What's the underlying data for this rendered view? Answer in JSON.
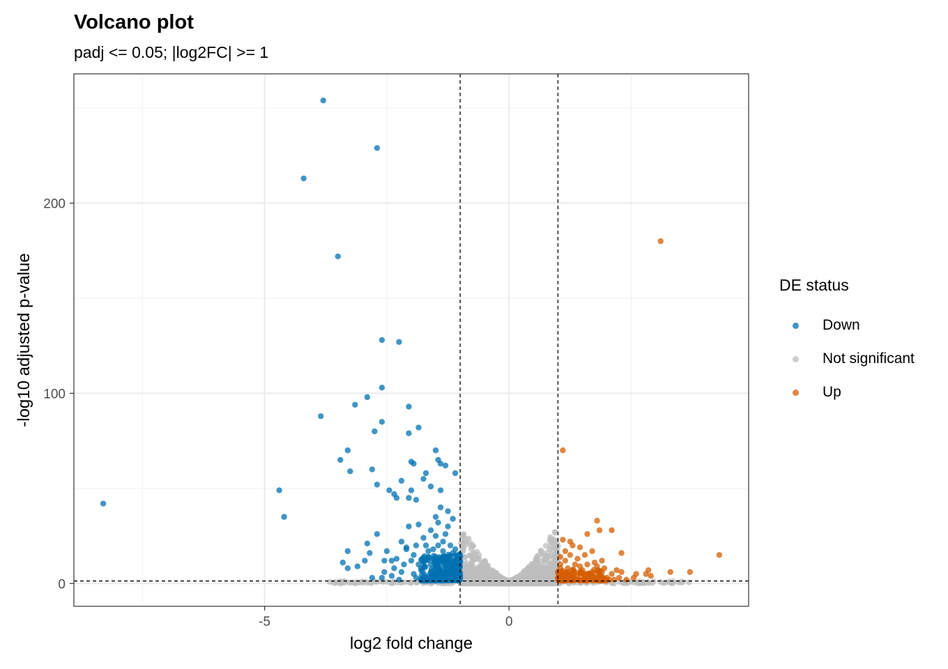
{
  "chart_data": {
    "type": "scatter",
    "title": "Volcano plot",
    "subtitle": "padj <= 0.05; |log2FC| >= 1",
    "xlabel": "log2 fold change",
    "ylabel": "-log10 adjusted p-value",
    "xlim": [
      -8.9,
      4.9
    ],
    "ylim": [
      -12,
      268
    ],
    "xticks": [
      -5,
      0
    ],
    "yticks": [
      0,
      100,
      200
    ],
    "grid": true,
    "legend": {
      "title": "DE status",
      "placement": "right",
      "entries": [
        {
          "label": "Down",
          "color": "#0072B2"
        },
        {
          "label": "Not significant",
          "color": "#BEBEBE"
        },
        {
          "label": "Up",
          "color": "#D55E00"
        }
      ]
    },
    "thresholds": {
      "x": [
        -1,
        1
      ],
      "y": 1.3
    },
    "series": [
      {
        "name": "Down",
        "color": "#0072B2",
        "points": [
          [
            -8.3,
            42
          ],
          [
            -4.7,
            49
          ],
          [
            -4.6,
            35
          ],
          [
            -3.8,
            254
          ],
          [
            -4.2,
            213
          ],
          [
            -3.5,
            172
          ],
          [
            -2.7,
            229
          ],
          [
            -3.85,
            88
          ],
          [
            -3.45,
            65
          ],
          [
            -3.3,
            70
          ],
          [
            -3.25,
            59
          ],
          [
            -3.15,
            94
          ],
          [
            -2.9,
            98
          ],
          [
            -2.8,
            60
          ],
          [
            -2.75,
            80
          ],
          [
            -2.7,
            52
          ],
          [
            -2.6,
            128
          ],
          [
            -2.6,
            103
          ],
          [
            -2.6,
            85
          ],
          [
            -2.25,
            127
          ],
          [
            -2.05,
            93
          ],
          [
            -2.05,
            79
          ],
          [
            -1.85,
            82
          ],
          [
            -1.95,
            63
          ],
          [
            -2.0,
            64
          ],
          [
            -1.7,
            58
          ],
          [
            -1.5,
            70
          ],
          [
            -1.4,
            63
          ],
          [
            -1.3,
            62
          ],
          [
            -1.45,
            65
          ],
          [
            -1.1,
            58
          ],
          [
            -2.2,
            54
          ],
          [
            -2.35,
            47
          ],
          [
            -2.45,
            49
          ],
          [
            -2.3,
            45
          ],
          [
            -2.0,
            49
          ],
          [
            -2.05,
            45
          ],
          [
            -1.9,
            44
          ],
          [
            -1.6,
            51
          ],
          [
            -1.75,
            55
          ],
          [
            -1.4,
            49
          ],
          [
            -1.25,
            38
          ],
          [
            -1.5,
            35
          ],
          [
            -1.45,
            32
          ],
          [
            -1.25,
            30
          ],
          [
            -1.15,
            34
          ],
          [
            -1.4,
            40
          ],
          [
            -1.6,
            28
          ],
          [
            -1.85,
            31
          ],
          [
            -2.05,
            30
          ],
          [
            -1.75,
            24
          ],
          [
            -2.2,
            22
          ],
          [
            -2.5,
            17
          ],
          [
            -2.7,
            26
          ],
          [
            -2.9,
            21
          ],
          [
            -3.3,
            17
          ],
          [
            -3.4,
            11
          ],
          [
            -3.3,
            8
          ],
          [
            -3.1,
            9
          ],
          [
            -2.95,
            12
          ],
          [
            -2.85,
            16
          ],
          [
            -2.55,
            12
          ],
          [
            -2.3,
            13
          ],
          [
            -2.1,
            19
          ],
          [
            -1.9,
            20
          ],
          [
            -1.65,
            17
          ],
          [
            -1.55,
            13
          ],
          [
            -1.3,
            14
          ],
          [
            -1.15,
            12
          ],
          [
            -1.1,
            8
          ],
          [
            -1.25,
            10
          ],
          [
            -1.45,
            9
          ],
          [
            -1.6,
            6
          ],
          [
            -1.8,
            8
          ],
          [
            -2.0,
            12
          ],
          [
            -2.2,
            6
          ],
          [
            -2.4,
            4
          ],
          [
            -2.6,
            3
          ],
          [
            -2.25,
            2
          ],
          [
            -1.95,
            5
          ],
          [
            -1.7,
            3
          ],
          [
            -1.55,
            4
          ],
          [
            -1.35,
            4
          ],
          [
            -1.2,
            6
          ],
          [
            -1.05,
            5
          ],
          [
            -1.1,
            18
          ],
          [
            -1.35,
            22
          ],
          [
            -1.55,
            18
          ],
          [
            -1.65,
            14
          ],
          [
            -1.75,
            12
          ],
          [
            -1.85,
            10
          ],
          [
            -1.5,
            25
          ],
          [
            -1.3,
            26
          ],
          [
            -1.2,
            20
          ],
          [
            -2.55,
            6
          ],
          [
            -2.35,
            8
          ],
          [
            -2.15,
            10
          ],
          [
            -1.4,
            6
          ],
          [
            -1.15,
            16
          ],
          [
            -1.25,
            2
          ],
          [
            -1.05,
            2
          ],
          [
            -2.8,
            3
          ],
          [
            -1.9,
            3
          ],
          [
            -1.6,
            10
          ],
          [
            -1.35,
            17
          ],
          [
            -1.1,
            10
          ],
          [
            -1.5,
            14
          ],
          [
            -1.95,
            15
          ],
          [
            -2.1,
            18
          ],
          [
            -2.4,
            12
          ],
          [
            -1.7,
            20
          ],
          [
            -1.45,
            20
          ],
          [
            -1.2,
            3
          ],
          [
            -1.6,
            2
          ]
        ]
      },
      {
        "name": "Up",
        "color": "#D55E00",
        "points": [
          [
            3.1,
            180
          ],
          [
            1.1,
            70
          ],
          [
            4.3,
            15
          ],
          [
            1.8,
            33
          ],
          [
            1.85,
            28
          ],
          [
            1.6,
            26
          ],
          [
            2.1,
            28
          ],
          [
            1.1,
            23
          ],
          [
            1.3,
            20
          ],
          [
            1.45,
            19
          ],
          [
            1.25,
            15
          ],
          [
            1.4,
            13
          ],
          [
            1.55,
            15
          ],
          [
            1.7,
            17
          ],
          [
            2.3,
            16
          ],
          [
            1.15,
            12
          ],
          [
            1.35,
            10
          ],
          [
            1.6,
            10
          ],
          [
            1.75,
            11
          ],
          [
            1.8,
            9
          ],
          [
            1.95,
            8
          ],
          [
            2.2,
            7
          ],
          [
            2.3,
            6
          ],
          [
            2.6,
            5
          ],
          [
            2.85,
            7
          ],
          [
            2.9,
            4
          ],
          [
            3.3,
            6
          ],
          [
            3.7,
            6
          ],
          [
            2.8,
            5
          ],
          [
            2.55,
            3
          ],
          [
            1.05,
            8
          ],
          [
            1.1,
            5
          ],
          [
            1.2,
            6
          ],
          [
            1.3,
            4
          ],
          [
            1.45,
            5
          ],
          [
            1.6,
            3
          ],
          [
            1.7,
            6
          ],
          [
            1.85,
            4
          ],
          [
            2.0,
            3
          ],
          [
            2.1,
            5
          ],
          [
            2.25,
            3
          ],
          [
            2.4,
            2
          ],
          [
            1.0,
            3
          ],
          [
            1.15,
            3
          ],
          [
            1.25,
            2
          ],
          [
            1.4,
            2
          ],
          [
            1.05,
            10
          ],
          [
            1.2,
            8
          ],
          [
            1.5,
            7
          ],
          [
            1.65,
            5
          ],
          [
            1.9,
            6
          ],
          [
            2.05,
            2
          ],
          [
            1.35,
            6
          ],
          [
            1.0,
            6
          ],
          [
            1.55,
            3
          ],
          [
            1.75,
            2
          ],
          [
            1.95,
            2
          ],
          [
            2.15,
            2
          ],
          [
            1.1,
            2
          ],
          [
            1.3,
            7
          ],
          [
            1.45,
            9
          ],
          [
            1.9,
            12
          ],
          [
            1.15,
            17
          ],
          [
            1.25,
            22
          ],
          [
            1.05,
            14
          ]
        ]
      }
    ]
  }
}
